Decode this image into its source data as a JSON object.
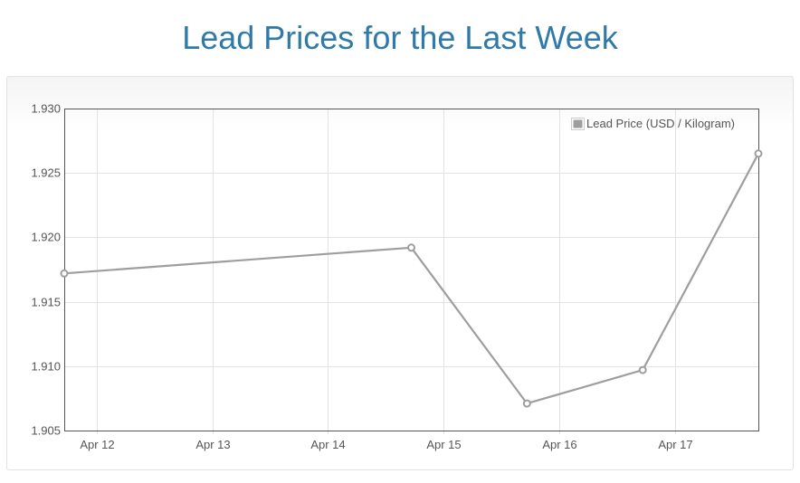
{
  "title": "Lead Prices for the Last Week",
  "colors": {
    "title": "#2f7aa8",
    "series": "#9e9e9e",
    "grid": "#e3e3e3",
    "axis": "#555555"
  },
  "chart_data": {
    "type": "line",
    "title": "Lead Prices for the Last Week",
    "xlabel": "",
    "ylabel": "",
    "x_ticks": [
      {
        "label": "Apr 12",
        "day": 12
      },
      {
        "label": "Apr 13",
        "day": 13
      },
      {
        "label": "Apr 14",
        "day": 14
      },
      {
        "label": "Apr 15",
        "day": 15
      },
      {
        "label": "Apr 16",
        "day": 16
      },
      {
        "label": "Apr 17",
        "day": 17
      }
    ],
    "xlim": [
      11.72,
      17.72
    ],
    "ylim": [
      1.905,
      1.93
    ],
    "y_ticks": [
      "1.905",
      "1.910",
      "1.915",
      "1.920",
      "1.925",
      "1.930"
    ],
    "grid": true,
    "legend_position": "top-right",
    "series": [
      {
        "name": "Lead Price (USD / Kilogram)",
        "color": "#9e9e9e",
        "points": [
          {
            "day": 11.72,
            "value": 1.9172
          },
          {
            "day": 14.72,
            "value": 1.9192
          },
          {
            "day": 15.72,
            "value": 1.9071
          },
          {
            "day": 16.72,
            "value": 1.9097
          },
          {
            "day": 17.72,
            "value": 1.9265
          }
        ]
      }
    ]
  }
}
